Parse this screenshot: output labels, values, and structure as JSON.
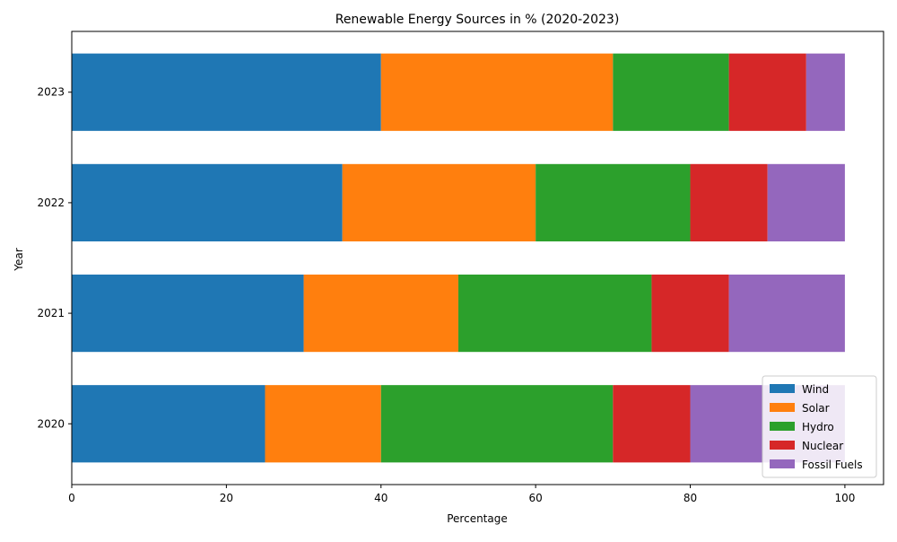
{
  "chart_data": {
    "type": "bar",
    "orientation": "horizontal",
    "stacked": true,
    "title": "Renewable Energy Sources in % (2020-2023)",
    "xlabel": "Percentage",
    "ylabel": "Year",
    "xlim": [
      0,
      105
    ],
    "xticks": [
      "0",
      "20",
      "40",
      "60",
      "80",
      "100"
    ],
    "categories": [
      "2020",
      "2021",
      "2022",
      "2023"
    ],
    "series": [
      {
        "name": "Wind",
        "color": "#1f77b4",
        "values": [
          25,
          30,
          35,
          40
        ]
      },
      {
        "name": "Solar",
        "color": "#ff7f0e",
        "values": [
          15,
          20,
          25,
          30
        ]
      },
      {
        "name": "Hydro",
        "color": "#2ca02c",
        "values": [
          30,
          25,
          20,
          15
        ]
      },
      {
        "name": "Nuclear",
        "color": "#d62728",
        "values": [
          10,
          10,
          10,
          10
        ]
      },
      {
        "name": "Fossil Fuels",
        "color": "#9467bd",
        "values": [
          20,
          15,
          10,
          5
        ]
      }
    ],
    "grid": false,
    "legend_position": "lower-right"
  }
}
